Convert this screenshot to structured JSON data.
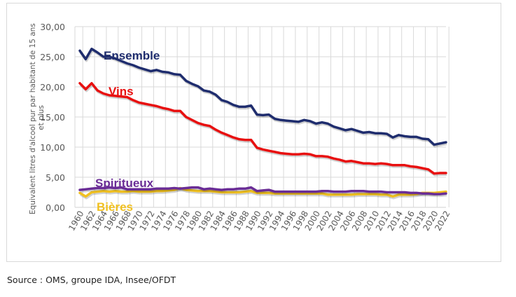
{
  "source_text": "Source : OMS, groupe IDA, Insee/OFDT",
  "chart_data": {
    "type": "line",
    "title": "",
    "xlabel": "",
    "ylabel": "Equivalent litres d'alcool pur par habitant de 15 ans et plus",
    "ylim": [
      0,
      30
    ],
    "yticks": [
      "0,00",
      "5,00",
      "10,00",
      "15,00",
      "20,00",
      "25,00",
      "30,00"
    ],
    "ytick_values": [
      0,
      5,
      10,
      15,
      20,
      25,
      30
    ],
    "xtick_labels": [
      "1960",
      "1962",
      "1964",
      "1966",
      "1968",
      "1970",
      "1972",
      "1974",
      "1976",
      "1978",
      "1980",
      "1982",
      "1984",
      "1986",
      "1988",
      "1990",
      "1992",
      "1994",
      "1996",
      "1998",
      "2000",
      "2002",
      "2004",
      "2006",
      "2008",
      "2010",
      "2012",
      "2014",
      "2016",
      "2018",
      "2020",
      "2022"
    ],
    "grid": true,
    "legend": "inline labels",
    "x": [
      1960,
      1961,
      1962,
      1963,
      1964,
      1965,
      1966,
      1967,
      1968,
      1969,
      1970,
      1971,
      1972,
      1973,
      1974,
      1975,
      1976,
      1977,
      1978,
      1979,
      1980,
      1981,
      1982,
      1983,
      1984,
      1985,
      1986,
      1987,
      1988,
      1989,
      1990,
      1991,
      1992,
      1993,
      1994,
      1995,
      1996,
      1997,
      1998,
      1999,
      2000,
      2001,
      2002,
      2003,
      2004,
      2005,
      2006,
      2007,
      2008,
      2009,
      2010,
      2011,
      2012,
      2013,
      2014,
      2015,
      2016,
      2017,
      2018,
      2019,
      2020,
      2021,
      2022
    ],
    "series": [
      {
        "name": "Ensemble",
        "color": "#1f2d6e",
        "values": [
          26.0,
          24.6,
          26.3,
          25.7,
          25.0,
          25.0,
          24.7,
          24.3,
          23.9,
          23.6,
          23.2,
          22.9,
          22.6,
          22.8,
          22.5,
          22.4,
          22.1,
          22.0,
          21.0,
          20.5,
          20.1,
          19.4,
          19.2,
          18.7,
          17.8,
          17.5,
          17.0,
          16.7,
          16.7,
          16.9,
          15.4,
          15.3,
          15.4,
          14.7,
          14.5,
          14.4,
          14.3,
          14.2,
          14.5,
          14.3,
          13.9,
          14.1,
          13.9,
          13.4,
          13.1,
          12.8,
          13.0,
          12.7,
          12.4,
          12.5,
          12.3,
          12.3,
          12.2,
          11.6,
          12.0,
          11.8,
          11.7,
          11.7,
          11.4,
          11.3,
          10.4,
          10.6,
          10.8
        ]
      },
      {
        "name": "Vins",
        "color": "#e81010",
        "values": [
          20.6,
          19.6,
          20.6,
          19.4,
          18.9,
          18.6,
          18.5,
          18.4,
          18.3,
          17.8,
          17.4,
          17.2,
          17.0,
          16.8,
          16.5,
          16.3,
          16.0,
          16.0,
          15.0,
          14.5,
          14.0,
          13.7,
          13.5,
          12.9,
          12.4,
          12.0,
          11.6,
          11.3,
          11.2,
          11.2,
          9.9,
          9.6,
          9.4,
          9.2,
          9.0,
          8.9,
          8.8,
          8.8,
          8.9,
          8.8,
          8.5,
          8.5,
          8.4,
          8.1,
          7.9,
          7.6,
          7.7,
          7.5,
          7.3,
          7.3,
          7.2,
          7.3,
          7.2,
          7.0,
          7.0,
          7.0,
          6.8,
          6.7,
          6.5,
          6.3,
          5.6,
          5.7,
          5.7
        ]
      },
      {
        "name": "Spiritueux",
        "color": "#6a2d96",
        "values": [
          2.9,
          3.0,
          3.1,
          3.2,
          3.2,
          3.3,
          3.2,
          3.3,
          3.0,
          3.0,
          3.0,
          3.0,
          3.0,
          3.1,
          3.1,
          3.1,
          3.2,
          3.1,
          3.2,
          3.3,
          3.3,
          3.0,
          3.1,
          3.0,
          2.9,
          3.0,
          3.0,
          3.1,
          3.1,
          3.3,
          2.7,
          2.8,
          2.9,
          2.6,
          2.6,
          2.6,
          2.6,
          2.6,
          2.6,
          2.6,
          2.6,
          2.7,
          2.7,
          2.6,
          2.6,
          2.6,
          2.7,
          2.7,
          2.7,
          2.6,
          2.6,
          2.6,
          2.5,
          2.5,
          2.5,
          2.5,
          2.4,
          2.4,
          2.3,
          2.3,
          2.2,
          2.2,
          2.3
        ]
      },
      {
        "name": "Bières",
        "color": "#f0c020",
        "values": [
          2.4,
          1.8,
          2.5,
          2.6,
          2.7,
          2.6,
          2.7,
          2.6,
          2.6,
          2.7,
          2.6,
          2.6,
          2.6,
          2.7,
          2.7,
          2.8,
          2.9,
          3.2,
          2.9,
          2.8,
          2.7,
          2.7,
          2.7,
          2.6,
          2.5,
          2.5,
          2.5,
          2.5,
          2.6,
          2.7,
          2.4,
          2.4,
          2.4,
          2.3,
          2.3,
          2.3,
          2.3,
          2.3,
          2.3,
          2.3,
          2.3,
          2.3,
          2.1,
          2.1,
          2.1,
          2.1,
          2.1,
          2.2,
          2.2,
          2.2,
          2.2,
          2.1,
          2.1,
          1.8,
          2.1,
          2.1,
          2.1,
          2.2,
          2.4,
          2.4,
          2.4,
          2.5,
          2.6
        ]
      }
    ],
    "annotations": [
      "Ensemble",
      "Vins",
      "Spiritueux",
      "Bières"
    ]
  }
}
